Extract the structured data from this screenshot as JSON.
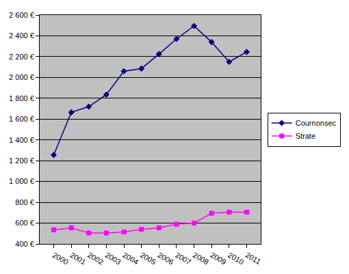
{
  "chart_data": {
    "type": "line",
    "categories": [
      "2000",
      "2001",
      "2002",
      "2003",
      "2004",
      "2005",
      "2006",
      "2007",
      "2008",
      "2009",
      "2010",
      "2011"
    ],
    "series": [
      {
        "name": "Cournonsec",
        "color": "#000080",
        "marker": "diamond",
        "line_style": "solid",
        "values": [
          1255,
          1665,
          1720,
          1835,
          2060,
          2085,
          2225,
          2370,
          2495,
          2340,
          2150,
          2245
        ]
      },
      {
        "name": "Strate",
        "color": "#ff00ff",
        "marker": "square",
        "line_style": "solid",
        "values": [
          535,
          555,
          505,
          505,
          515,
          540,
          555,
          590,
          600,
          695,
          705,
          705
        ]
      }
    ],
    "ylim": [
      400,
      2600
    ],
    "yticks": [
      {
        "value": 400,
        "label": "400 €"
      },
      {
        "value": 600,
        "label": "600 €"
      },
      {
        "value": 800,
        "label": "800 €"
      },
      {
        "value": 1000,
        "label": "1 000 €"
      },
      {
        "value": 1200,
        "label": "1 200 €"
      },
      {
        "value": 1400,
        "label": "1 400 €"
      },
      {
        "value": 1600,
        "label": "1 600 €"
      },
      {
        "value": 1800,
        "label": "1 800 €"
      },
      {
        "value": 2000,
        "label": "2 000 €"
      },
      {
        "value": 2200,
        "label": "2 200 €"
      },
      {
        "value": 2400,
        "label": "2 400 €"
      },
      {
        "value": 2600,
        "label": "2 600 €"
      }
    ],
    "grid": true,
    "legend": "right"
  }
}
